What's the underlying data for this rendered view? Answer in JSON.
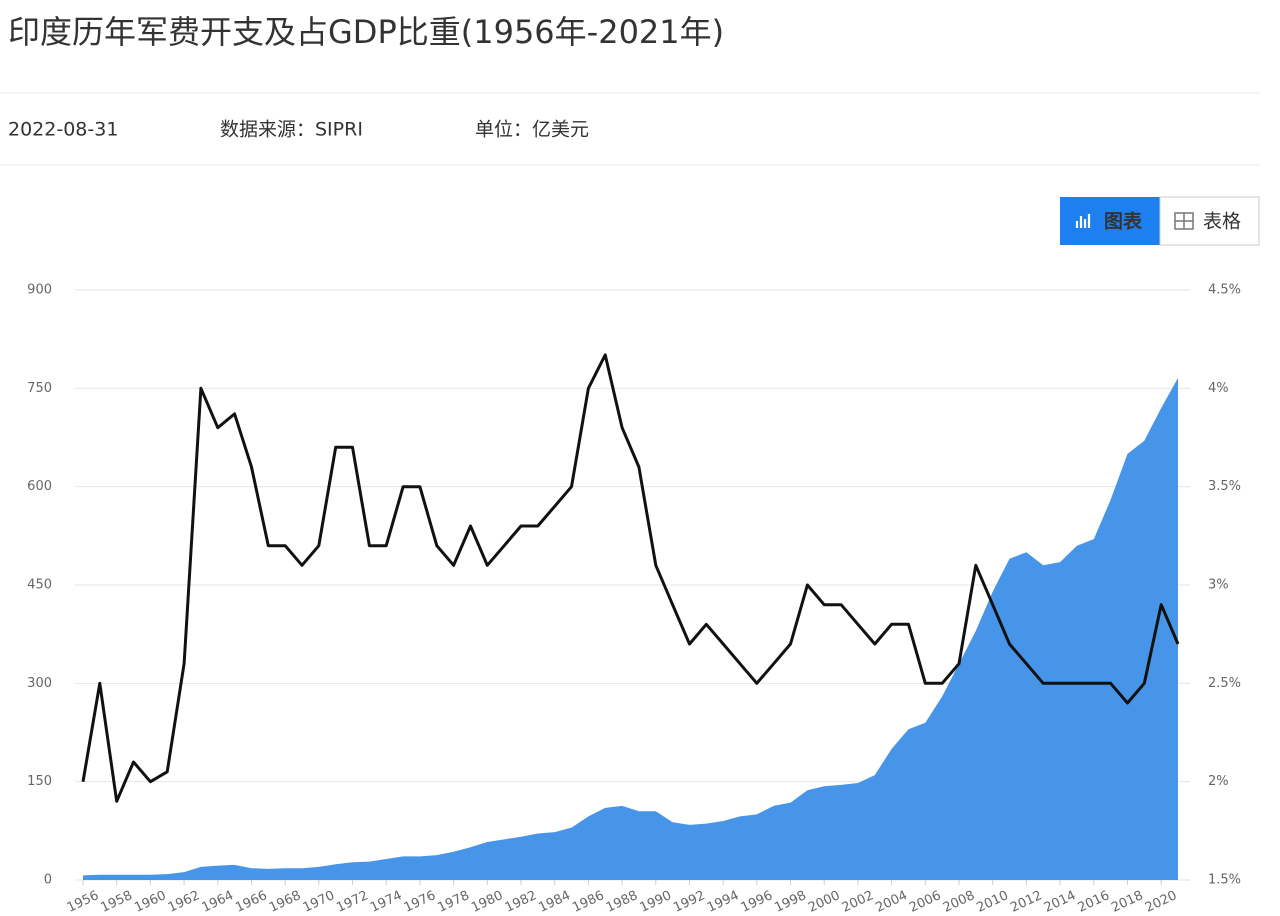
{
  "header": {
    "title": "印度历年军费开支及占GDP比重(1956年-2021年)",
    "date": "2022-08-31",
    "source": "数据来源：SIPRI",
    "unit": "单位：亿美元"
  },
  "toolbar": {
    "chart_tab": "图表",
    "table_tab": "表格"
  },
  "chart_data": {
    "type": "area",
    "x": [
      1956,
      1957,
      1958,
      1959,
      1960,
      1961,
      1962,
      1963,
      1964,
      1965,
      1966,
      1967,
      1968,
      1969,
      1970,
      1971,
      1972,
      1973,
      1974,
      1975,
      1976,
      1977,
      1978,
      1979,
      1980,
      1981,
      1982,
      1983,
      1984,
      1985,
      1986,
      1987,
      1988,
      1989,
      1990,
      1991,
      1992,
      1993,
      1994,
      1995,
      1996,
      1997,
      1998,
      1999,
      2000,
      2001,
      2002,
      2003,
      2004,
      2005,
      2006,
      2007,
      2008,
      2009,
      2010,
      2011,
      2012,
      2013,
      2014,
      2015,
      2016,
      2017,
      2018,
      2019,
      2020,
      2021
    ],
    "xlim": [
      1956,
      2021
    ],
    "xticks": [
      1956,
      1958,
      1960,
      1962,
      1964,
      1966,
      1968,
      1970,
      1972,
      1974,
      1976,
      1978,
      1980,
      1982,
      1984,
      1986,
      1988,
      1990,
      1992,
      1994,
      1996,
      1998,
      2000,
      2002,
      2004,
      2006,
      2008,
      2010,
      2012,
      2014,
      2016,
      2018,
      2020
    ],
    "ylim": [
      0,
      900
    ],
    "yticks": [
      0,
      150,
      300,
      450,
      600,
      750,
      900
    ],
    "y2lim": [
      1.5,
      4.5
    ],
    "y2ticks": [
      {
        "value": 1.5,
        "label": "1.5%"
      },
      {
        "value": 2,
        "label": "2%"
      },
      {
        "value": 2.5,
        "label": "2.5%"
      },
      {
        "value": 3,
        "label": "3%"
      },
      {
        "value": 3.5,
        "label": "3.5%"
      },
      {
        "value": 4,
        "label": "4%"
      },
      {
        "value": 4.5,
        "label": "4.5%"
      }
    ],
    "grid": true,
    "series": [
      {
        "type": "area",
        "color": "#3d8fe8",
        "values": [
          7,
          8,
          8,
          8,
          8,
          9,
          12,
          20,
          22,
          23,
          18,
          17,
          18,
          18,
          20,
          24,
          27,
          28,
          32,
          36,
          36,
          38,
          43,
          50,
          58,
          62,
          66,
          71,
          73,
          80,
          97,
          110,
          113,
          105,
          105,
          88,
          84,
          86,
          90,
          97,
          100,
          113,
          118,
          137,
          143,
          145,
          148,
          160,
          200,
          230,
          240,
          280,
          330,
          380,
          440,
          490,
          500,
          480,
          485,
          510,
          520,
          580,
          650,
          670,
          720,
          766
        ]
      },
      {
        "type": "line",
        "axis": "y2",
        "color": "#111111",
        "values": [
          2.0,
          2.5,
          1.9,
          2.1,
          2.0,
          2.05,
          2.6,
          4.0,
          3.8,
          3.87,
          3.6,
          3.2,
          3.2,
          3.1,
          3.2,
          3.7,
          3.7,
          3.2,
          3.2,
          3.5,
          3.5,
          3.2,
          3.1,
          3.3,
          3.1,
          3.2,
          3.3,
          3.3,
          3.4,
          3.5,
          4.0,
          4.17,
          3.8,
          3.6,
          3.1,
          2.9,
          2.7,
          2.8,
          2.7,
          2.6,
          2.5,
          2.6,
          2.7,
          3.0,
          2.9,
          2.9,
          2.8,
          2.7,
          2.8,
          2.8,
          2.5,
          2.5,
          2.6,
          3.1,
          2.9,
          2.7,
          2.6,
          2.5,
          2.5,
          2.5,
          2.5,
          2.5,
          2.4,
          2.5,
          2.9,
          2.7
        ]
      }
    ]
  }
}
